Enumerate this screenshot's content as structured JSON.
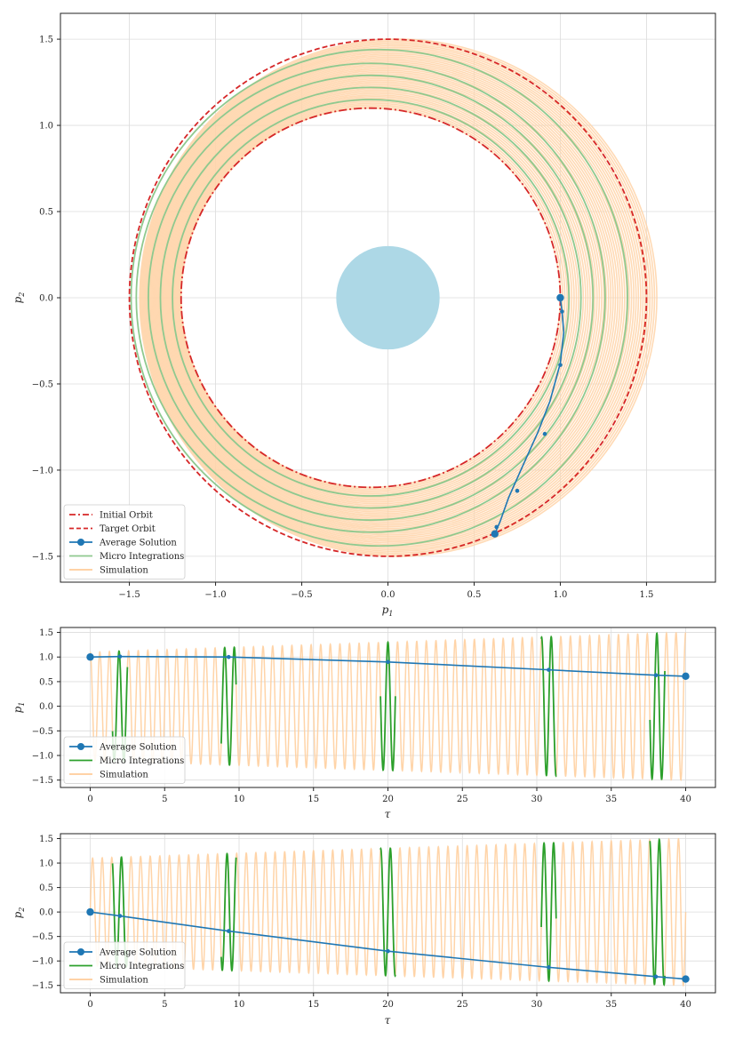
{
  "chart_data": [
    {
      "type": "line",
      "panel": "orbit",
      "xlabel": "p1",
      "ylabel": "p2",
      "xlim": [
        -1.9,
        1.9
      ],
      "ylim": [
        -1.65,
        1.65
      ],
      "xticks": [
        -1.5,
        -1.0,
        -0.5,
        0.0,
        0.5,
        1.0,
        1.5
      ],
      "xtick_labels": [
        "−1.5",
        "−1.0",
        "−0.5",
        "0.0",
        "0.5",
        "1.0",
        "1.5"
      ],
      "yticks": [
        -1.5,
        -1.0,
        -0.5,
        0.0,
        0.5,
        1.0,
        1.5
      ],
      "ytick_labels": [
        "−1.5",
        "−1.0",
        "−0.5",
        "0.0",
        "0.5",
        "1.0",
        "1.5"
      ],
      "grid": true,
      "legend_position": "lower-left",
      "legend": [
        "Initial Orbit",
        "Target Orbit",
        "Average Solution",
        "Micro Integrations",
        "Simulation"
      ],
      "central_body": {
        "center": [
          0,
          0
        ],
        "radius": 0.3,
        "color": "#add8e6"
      },
      "initial_orbit": {
        "type": "ellipse",
        "center": [
          -0.1,
          0
        ],
        "rx": 1.1,
        "ry": 1.1,
        "color": "#d62728",
        "style": "dash-dot"
      },
      "target_orbit": {
        "type": "ellipse",
        "center": [
          0,
          0
        ],
        "rx": 1.5,
        "ry": 1.5,
        "color": "#d62728",
        "style": "dashed"
      },
      "micro_orbits": [
        {
          "center": [
            -0.1,
            0
          ],
          "r": 1.15
        },
        {
          "center": [
            -0.1,
            0
          ],
          "r": 1.22
        },
        {
          "center": [
            -0.1,
            0
          ],
          "r": 1.29
        },
        {
          "center": [
            -0.1,
            0
          ],
          "r": 1.36
        },
        {
          "center": [
            -0.05,
            0
          ],
          "r": 1.44
        }
      ],
      "simulation_band": {
        "r_min": 1.1,
        "r_max": 1.5,
        "color": "#ffd3a8"
      },
      "average_solution": {
        "color": "#1f77b4",
        "p1": [
          1.0,
          1.01,
          1.02,
          1.0,
          0.94,
          0.87,
          0.78,
          0.7,
          0.65,
          0.62
        ],
        "p2": [
          0.0,
          -0.08,
          -0.2,
          -0.38,
          -0.6,
          -0.78,
          -0.98,
          -1.16,
          -1.3,
          -1.37
        ],
        "markers_p1": [
          1.0,
          1.01,
          1.0,
          0.91,
          0.75,
          0.63,
          0.62
        ],
        "markers_p2": [
          0.0,
          -0.08,
          -0.39,
          -0.79,
          -1.12,
          -1.33,
          -1.37
        ]
      }
    },
    {
      "type": "line",
      "panel": "p1-vs-tau",
      "xlabel": "τ",
      "ylabel": "p1",
      "xlim": [
        -2,
        42
      ],
      "ylim": [
        -1.65,
        1.6
      ],
      "xticks": [
        0,
        5,
        10,
        15,
        20,
        25,
        30,
        35,
        40
      ],
      "xtick_labels": [
        "0",
        "5",
        "10",
        "15",
        "20",
        "25",
        "30",
        "35",
        "40"
      ],
      "yticks": [
        -1.5,
        -1.0,
        -0.5,
        0.0,
        0.5,
        1.0,
        1.5
      ],
      "ytick_labels": [
        "−1.5",
        "−1.0",
        "−0.5",
        "0.0",
        "0.5",
        "1.0",
        "1.5"
      ],
      "grid": true,
      "legend_position": "lower-left",
      "legend": [
        "Average Solution",
        "Micro Integrations",
        "Simulation"
      ],
      "average_solution": {
        "tau": [
          0,
          2,
          9.3,
          20,
          30.8,
          38,
          40
        ],
        "value": [
          1.0,
          1.01,
          1.0,
          0.9,
          0.74,
          0.63,
          0.61
        ]
      },
      "micro_windows": [
        [
          1.5,
          2.5
        ],
        [
          8.8,
          9.8
        ],
        [
          19.5,
          20.5
        ],
        [
          30.3,
          31.3
        ],
        [
          37.6,
          38.6
        ]
      ],
      "simulation": {
        "cycles": 62,
        "amp_start": 1.1,
        "amp_end": 1.5,
        "phase": "cos"
      }
    },
    {
      "type": "line",
      "panel": "p2-vs-tau",
      "xlabel": "τ",
      "ylabel": "p2",
      "xlim": [
        -2,
        42
      ],
      "ylim": [
        -1.65,
        1.6
      ],
      "xticks": [
        0,
        5,
        10,
        15,
        20,
        25,
        30,
        35,
        40
      ],
      "xtick_labels": [
        "0",
        "5",
        "10",
        "15",
        "20",
        "25",
        "30",
        "35",
        "40"
      ],
      "yticks": [
        -1.5,
        -1.0,
        -0.5,
        0.0,
        0.5,
        1.0,
        1.5
      ],
      "ytick_labels": [
        "−1.5",
        "−1.0",
        "−0.5",
        "0.0",
        "0.5",
        "1.0",
        "1.5"
      ],
      "grid": true,
      "legend_position": "lower-left",
      "legend": [
        "Average Solution",
        "Micro Integrations",
        "Simulation"
      ],
      "average_solution": {
        "tau": [
          0,
          2,
          9.3,
          20,
          30.8,
          38,
          40
        ],
        "value": [
          0.0,
          -0.08,
          -0.39,
          -0.8,
          -1.13,
          -1.32,
          -1.37
        ]
      },
      "micro_windows": [
        [
          1.5,
          2.5
        ],
        [
          8.8,
          9.8
        ],
        [
          19.5,
          20.5
        ],
        [
          30.3,
          31.3
        ],
        [
          37.6,
          38.6
        ]
      ],
      "simulation": {
        "cycles": 62,
        "amp_start": 1.1,
        "amp_end": 1.5,
        "phase": "sin"
      }
    }
  ],
  "colors": {
    "red": "#d62728",
    "blue": "#1f77b4",
    "green": "#2ca02c",
    "light_green": "#8fc98f",
    "orange": "#ffcc99",
    "light_blue": "#add8e6"
  }
}
